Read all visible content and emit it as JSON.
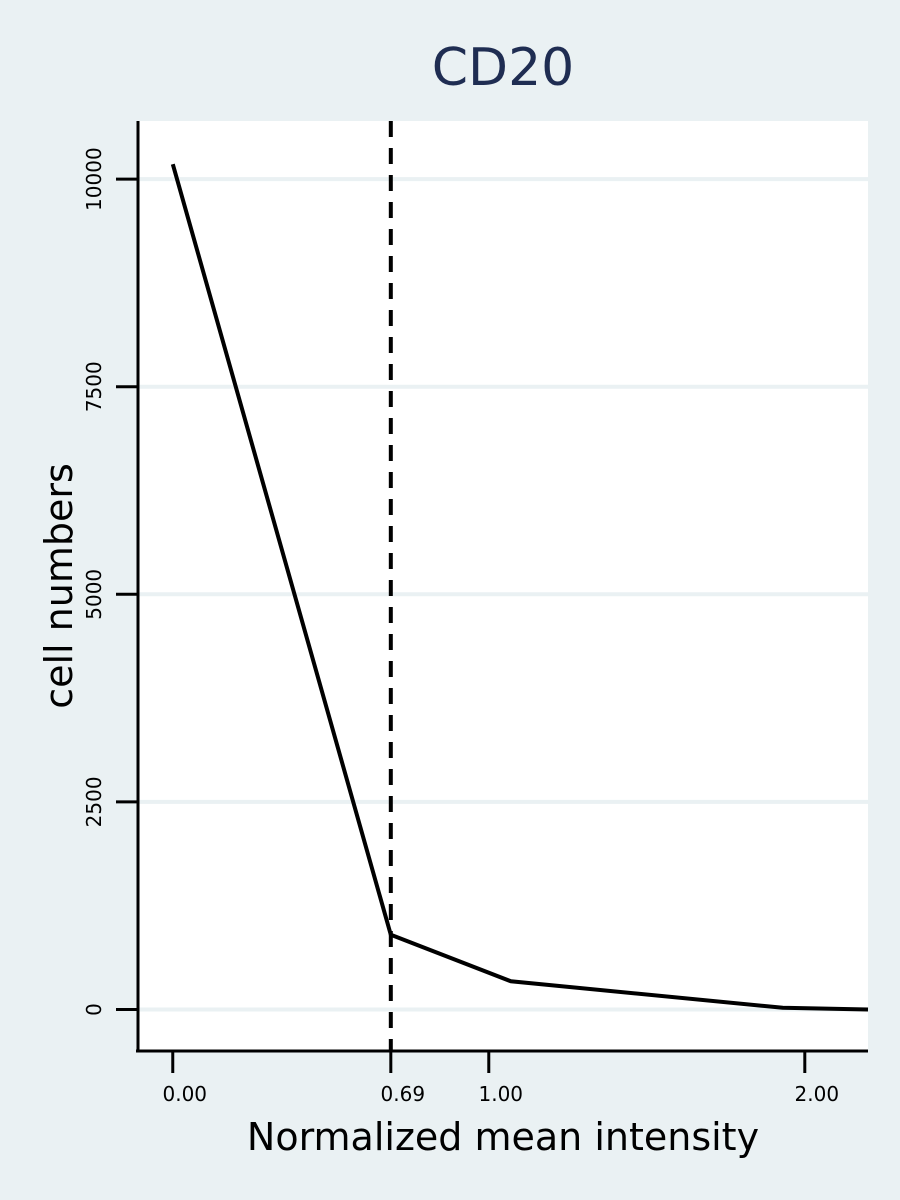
{
  "chart_data": {
    "type": "line",
    "title": "CD20",
    "xlabel": "Normalized mean intensity",
    "ylabel": "cell numbers",
    "x_ticks": [
      {
        "value": 0,
        "label": "0.00"
      },
      {
        "value": 0.69,
        "label": "0.69"
      },
      {
        "value": 1,
        "label": "1.00"
      },
      {
        "value": 2,
        "label": "2.00"
      }
    ],
    "y_ticks": [
      {
        "value": 0,
        "label": "0"
      },
      {
        "value": 2500,
        "label": "2500"
      },
      {
        "value": 5000,
        "label": "5000"
      },
      {
        "value": 7500,
        "label": "7500"
      },
      {
        "value": 10000,
        "label": "10000"
      }
    ],
    "xlim": [
      -0.11,
      2.2
    ],
    "ylim": [
      -500,
      10700
    ],
    "grid": "horizontal",
    "series": [
      {
        "x": [
          0.0,
          0.69,
          1.07,
          1.93,
          2.2
        ],
        "y": [
          10180,
          900,
          340,
          20,
          0
        ]
      }
    ],
    "reference_line": {
      "orientation": "vertical",
      "x": 0.69,
      "style": "dashed"
    },
    "colors": {
      "background": "#eaf1f3",
      "plot_area": "#ffffff",
      "gridline": "#eaf1f3",
      "line": "#000000",
      "title": "#1f2d52"
    }
  }
}
